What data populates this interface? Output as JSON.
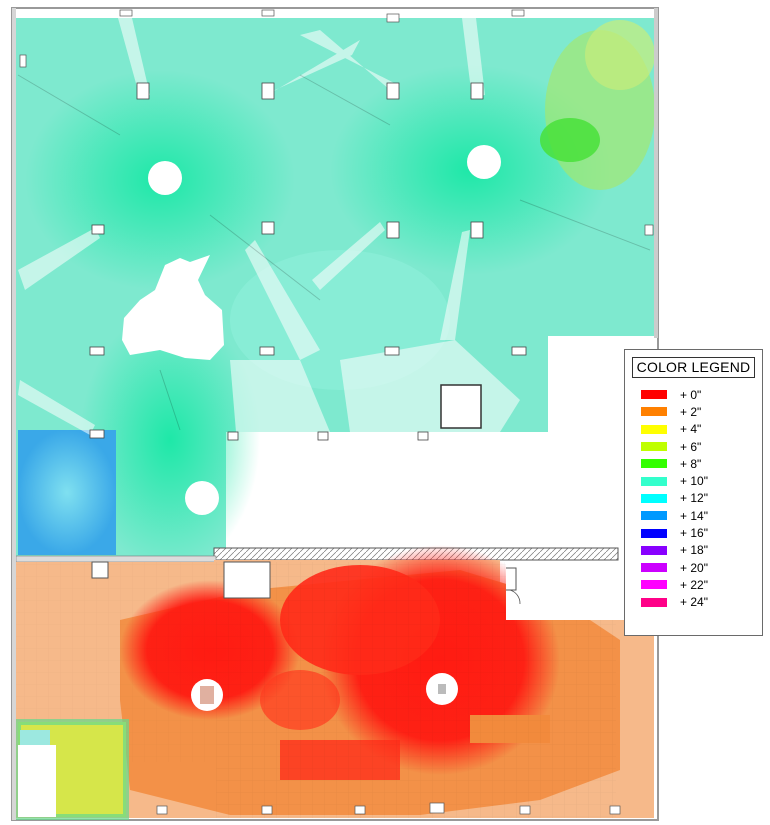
{
  "legend": {
    "title": "COLOR LEGEND",
    "items": [
      {
        "label": "+ 0\"",
        "color": "#ff0000"
      },
      {
        "label": "+ 2\"",
        "color": "#ff8000"
      },
      {
        "label": "+ 4\"",
        "color": "#ffff00"
      },
      {
        "label": "+ 6\"",
        "color": "#bfff00"
      },
      {
        "label": "+ 8\"",
        "color": "#33ff00"
      },
      {
        "label": "+ 10\"",
        "color": "#33ffcc"
      },
      {
        "label": "+ 12\"",
        "color": "#00ffff"
      },
      {
        "label": "+ 14\"",
        "color": "#0099ff"
      },
      {
        "label": "+ 16\"",
        "color": "#0000ff"
      },
      {
        "label": "+ 18\"",
        "color": "#8800ff"
      },
      {
        "label": "+ 20\"",
        "color": "#cc00ff"
      },
      {
        "label": "+ 22\"",
        "color": "#ff00ff"
      },
      {
        "label": "+ 24\"",
        "color": "#ff0088"
      }
    ]
  }
}
